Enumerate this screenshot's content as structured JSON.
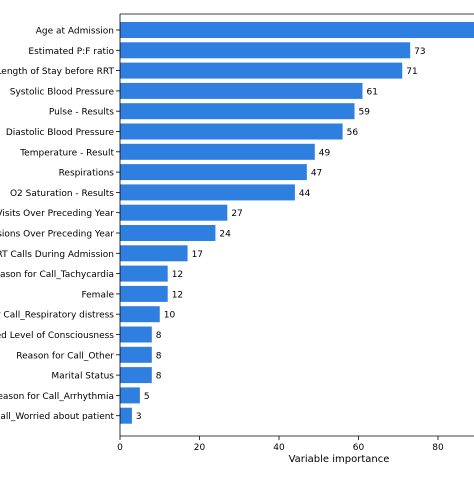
{
  "chart_data": {
    "type": "bar",
    "orientation": "horizontal",
    "xlabel": "Variable importance",
    "xlim": [
      0,
      90
    ],
    "xticks": [
      0,
      20,
      40,
      60,
      80
    ],
    "bar_color": "#2e7fe0",
    "grid": false,
    "categories": [
      "Age at Admission",
      "Estimated P:F ratio",
      "Length of Stay before RRT",
      "Systolic Blood Pressure",
      "Pulse - Results",
      "Diastolic Blood Pressure",
      "Temperature - Result",
      "Respirations",
      "O2 Saturation - Results",
      "D Visits Over Preceding Year",
      "missions Over Preceding Year",
      "f RRT Calls During Admission",
      "Reason for Call_Tachycardia",
      "Female",
      "for Call_Respiratory distress",
      "eased Level of Consciousness",
      "Reason for Call_Other",
      "Marital Status",
      "Reason for Call_Arrhythmia",
      "or Call_Worried about patient"
    ],
    "values": [
      100,
      73,
      71,
      61,
      59,
      56,
      49,
      47,
      44,
      27,
      24,
      17,
      12,
      12,
      10,
      8,
      8,
      8,
      5,
      3
    ],
    "value_labels": [
      "",
      "73",
      "71",
      "61",
      "59",
      "56",
      "49",
      "47",
      "44",
      "27",
      "24",
      "17",
      "12",
      "12",
      "10",
      "8",
      "8",
      "8",
      "5",
      "3"
    ]
  }
}
